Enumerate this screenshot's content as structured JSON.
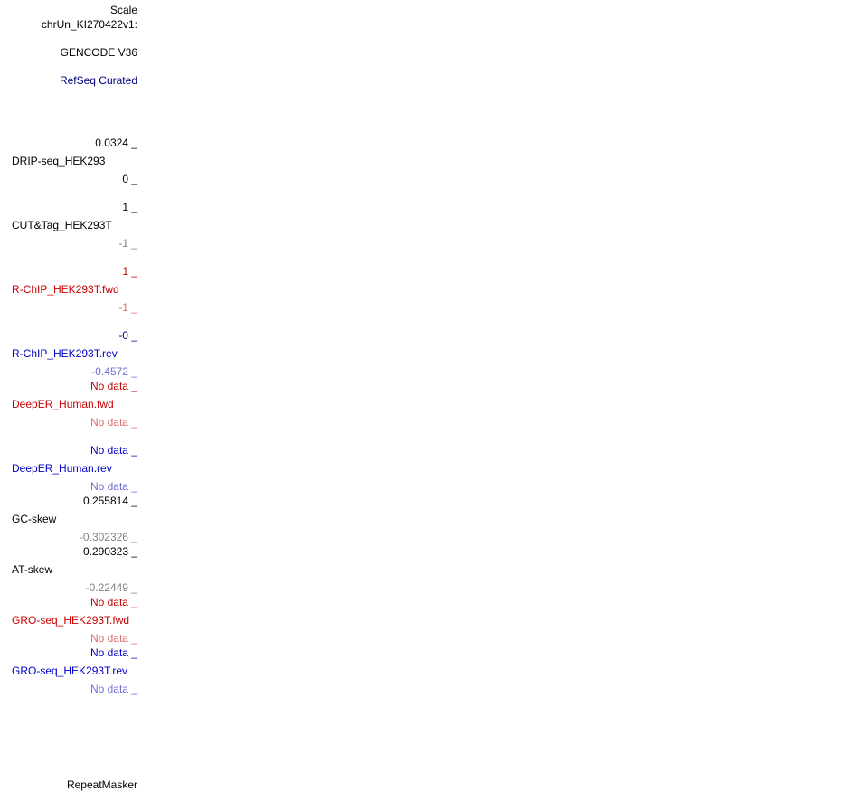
{
  "left_labels": {
    "scale": "Scale",
    "chrom": "chrUn_KI270422v1:",
    "gencode": "GENCODE V36",
    "refseq": "RefSeq Curated",
    "repeatmasker": "RepeatMasker"
  },
  "tracks": [
    {
      "max": "0.0324 _",
      "name": "DRIP-seq_HEK293",
      "min": "0 _"
    },
    {
      "max": "1 _",
      "name": "CUT&Tag_HEK293T",
      "min": "-1 _"
    },
    {
      "max": "1 _",
      "name": "R-ChIP_HEK293T.fwd",
      "min": "-1 _"
    },
    {
      "max": "-0 _",
      "name": "R-ChIP_HEK293T.rev",
      "min": "-0.4572 _"
    },
    {
      "max": "No data _",
      "name": "DeepER_Human.fwd",
      "min": "No data _"
    },
    {
      "max": "No data _",
      "name": "DeepER_Human.rev",
      "min": "No data _"
    },
    {
      "max": "0.255814 _",
      "name": "GC-skew",
      "min": "-0.302326 _"
    },
    {
      "max": "0.290323 _",
      "name": "AT-skew",
      "min": "-0.22449 _"
    },
    {
      "max": "No data _",
      "name": "GRO-seq_HEK293T.fwd",
      "min": "No data _"
    },
    {
      "max": "No data _",
      "name": "GRO-seq_HEK293T.rev",
      "min": "No data _"
    }
  ],
  "colors": {
    "black": "#000000",
    "grey": "#808080",
    "navy": "#000080",
    "red": "#cc0000",
    "light_red": "#e06a6a",
    "blue": "#0000c8",
    "light_blue": "#6f6fd6"
  }
}
